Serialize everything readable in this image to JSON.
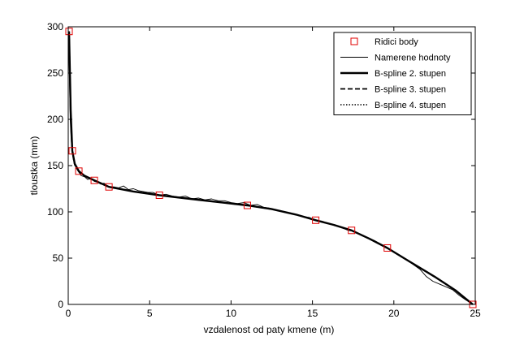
{
  "chart_data": {
    "type": "line",
    "xlabel": "vzdalenost od paty kmene (m)",
    "ylabel": "tloustka (mm)",
    "xlim": [
      0,
      25
    ],
    "ylim": [
      0,
      300
    ],
    "xticks": [
      0,
      5,
      10,
      15,
      20,
      25
    ],
    "yticks": [
      0,
      50,
      100,
      150,
      200,
      250,
      300
    ],
    "grid": false,
    "legend_position": "top-right",
    "series": [
      {
        "name": "Ridici body",
        "style": "markers-square",
        "color": "#e00000",
        "x": [
          0.05,
          0.25,
          0.65,
          1.6,
          2.5,
          5.6,
          11.0,
          15.2,
          17.4,
          19.6,
          24.85
        ],
        "y": [
          295,
          166,
          144,
          134,
          127,
          118,
          107,
          91,
          80,
          61,
          0
        ]
      },
      {
        "name": "Namerene hodnoty",
        "style": "thin",
        "color": "#000000",
        "x": [
          0.03,
          0.08,
          0.12,
          0.18,
          0.25,
          0.35,
          0.5,
          0.65,
          0.8,
          1.0,
          1.2,
          1.4,
          1.6,
          1.8,
          2.0,
          2.2,
          2.5,
          2.8,
          3.1,
          3.4,
          3.7,
          4.0,
          4.3,
          4.6,
          4.9,
          5.2,
          5.6,
          6.0,
          6.4,
          6.8,
          7.2,
          7.6,
          8.0,
          8.4,
          8.8,
          9.2,
          9.6,
          10.0,
          10.4,
          10.8,
          11.2,
          11.6,
          12.0,
          12.4,
          12.8,
          13.2,
          13.6,
          14.0,
          14.4,
          14.8,
          15.2,
          15.6,
          16.0,
          16.4,
          16.8,
          17.2,
          17.6,
          18.0,
          18.4,
          18.8,
          19.2,
          19.6,
          20.0,
          20.4,
          20.8,
          21.2,
          21.6,
          22.0,
          22.4,
          22.8,
          23.2,
          23.6,
          24.0,
          24.4,
          24.85
        ],
        "y": [
          288,
          240,
          200,
          178,
          163,
          156,
          147,
          143,
          139,
          138,
          135,
          136,
          133,
          132,
          130,
          131,
          127,
          127,
          126,
          128,
          124,
          125,
          123,
          122,
          121,
          121,
          118,
          119,
          117,
          116,
          117,
          114,
          115,
          113,
          114,
          112,
          112,
          110,
          109,
          110,
          107,
          108,
          105,
          104,
          102,
          100,
          99,
          97,
          95,
          94,
          91,
          90,
          87,
          86,
          83,
          80,
          79,
          75,
          72,
          69,
          65,
          61,
          57,
          53,
          48,
          43,
          38,
          30,
          25,
          22,
          19,
          16,
          10,
          5,
          0
        ]
      },
      {
        "name": "B-spline 2. stupen",
        "style": "thick",
        "color": "#000000",
        "x": [
          0.05,
          0.15,
          0.25,
          0.4,
          0.65,
          1.0,
          1.6,
          2.5,
          4.0,
          5.6,
          7.5,
          9.5,
          11.0,
          12.5,
          14.0,
          15.2,
          16.3,
          17.4,
          18.5,
          19.6,
          21.0,
          22.5,
          23.8,
          24.85
        ],
        "y": [
          295,
          210,
          166,
          152,
          144,
          139,
          134,
          127,
          122,
          118,
          114,
          110,
          107,
          103,
          97,
          91,
          86,
          80,
          71,
          61,
          46,
          30,
          15,
          0
        ]
      },
      {
        "name": "B-spline 3. stupen",
        "style": "dashed",
        "color": "#000000",
        "x": [
          0.05,
          0.15,
          0.25,
          0.4,
          0.65,
          1.0,
          1.6,
          2.5,
          4.0,
          5.6,
          7.5,
          9.5,
          11.0,
          12.5,
          14.0,
          15.2,
          16.3,
          17.4,
          18.5,
          19.6,
          21.0,
          22.5,
          23.8,
          24.85
        ],
        "y": [
          295,
          208,
          165,
          151,
          144,
          139,
          134,
          127,
          122,
          118,
          114,
          110,
          107,
          103,
          97,
          91,
          86,
          80,
          71,
          61,
          46,
          30,
          15,
          0
        ]
      },
      {
        "name": "B-spline 4. stupen",
        "style": "dotted",
        "color": "#000000",
        "x": [
          0.05,
          0.15,
          0.25,
          0.4,
          0.65,
          1.0,
          1.6,
          2.5,
          4.0,
          5.6,
          7.5,
          9.5,
          11.0,
          12.5,
          14.0,
          15.2,
          16.3,
          17.4,
          18.5,
          19.6,
          21.0,
          22.5,
          23.8,
          24.85
        ],
        "y": [
          295,
          206,
          164,
          151,
          143,
          139,
          134,
          127,
          122,
          118,
          114,
          110,
          107,
          103,
          97,
          91,
          86,
          80,
          71,
          61,
          46,
          30,
          15,
          0
        ]
      }
    ]
  }
}
